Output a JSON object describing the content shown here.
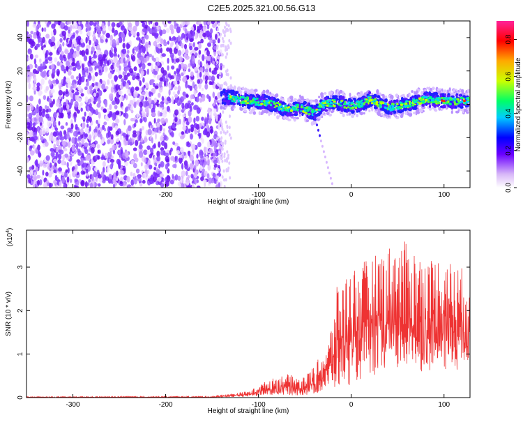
{
  "title": "C2E5.2025.321.00.56.G13",
  "chart_data": [
    {
      "type": "heatmap",
      "xlabel": "Height of straight line (km)",
      "ylabel": "Frequency (Hz)",
      "xlim": [
        -350,
        128
      ],
      "ylim": [
        -50,
        50
      ],
      "xticks": [
        -300,
        -200,
        -100,
        0,
        100
      ],
      "xtick_labels": [
        "-300",
        "-200",
        "-100",
        "0",
        "100"
      ],
      "yticks": [
        -40,
        -20,
        0,
        20,
        40
      ],
      "ytick_labels": [
        "-40",
        "-20",
        "0",
        "20",
        "40"
      ],
      "noise_region_x": [
        -350,
        -140
      ],
      "signal_region_x": [
        -140,
        128
      ],
      "signal_track": {
        "x": [
          -145,
          -130,
          -110,
          -90,
          -70,
          -55,
          -40,
          -30,
          -15,
          0,
          10,
          20,
          40,
          60,
          80,
          100,
          128
        ],
        "freq": [
          5,
          4,
          2,
          1,
          -3,
          -2,
          -5,
          0,
          1,
          -1,
          0,
          3,
          -2,
          0,
          3,
          2,
          2
        ]
      },
      "colorbar": {
        "label": "Normalized spectral amplitude",
        "range": [
          0,
          0.9
        ],
        "ticks": [
          0.0,
          0.2,
          0.4,
          0.6,
          0.8
        ],
        "tick_labels": [
          "0.0",
          "0.2",
          "0.4",
          "0.6",
          "0.8"
        ]
      }
    },
    {
      "type": "line",
      "xlabel": "Height of straight line (km)",
      "ylabel": "SNR (10 * v/v)",
      "scale_label": "(x10",
      "scale_exp": "4",
      "scale_close": ")",
      "xlim": [
        -350,
        128
      ],
      "ylim": [
        0,
        3.85
      ],
      "xticks": [
        -300,
        -200,
        -100,
        0,
        100
      ],
      "xtick_labels": [
        "-300",
        "-200",
        "-100",
        "0",
        "100"
      ],
      "yticks": [
        0,
        1,
        2,
        3
      ],
      "ytick_labels": [
        "0",
        "1",
        "2",
        "3"
      ],
      "color": "#ee3333",
      "envelope": {
        "x": [
          -350,
          -150,
          -110,
          -90,
          -70,
          -55,
          -45,
          -35,
          -25,
          -15,
          0,
          20,
          40,
          60,
          80,
          100,
          110,
          128
        ],
        "upper": [
          0.02,
          0.03,
          0.15,
          0.4,
          0.55,
          0.45,
          0.6,
          0.9,
          1.2,
          2.6,
          3.0,
          3.2,
          3.5,
          3.6,
          3.2,
          3.3,
          3.1,
          2.9
        ],
        "lower": [
          0,
          0,
          0.02,
          0.05,
          0.05,
          0.05,
          0.05,
          0.1,
          0.2,
          0.2,
          0.3,
          0.5,
          0.5,
          0.6,
          0.6,
          0.6,
          0.6,
          0.7
        ]
      }
    }
  ]
}
